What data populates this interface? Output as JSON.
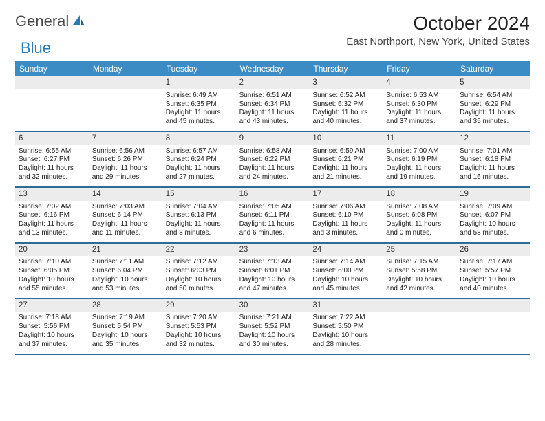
{
  "brand": {
    "part1": "General",
    "part2": "Blue",
    "icon_color": "#2a7ab8"
  },
  "title": "October 2024",
  "location": "East Northport, New York, United States",
  "colors": {
    "header_bg": "#3b8bc4",
    "week_border": "#2f6b99",
    "daynum_bg": "#ececec",
    "text": "#222222"
  },
  "typography": {
    "title_fontsize": 28,
    "location_fontsize": 15,
    "dow_fontsize": 12,
    "cell_fontsize": 10
  },
  "days_of_week": [
    "Sunday",
    "Monday",
    "Tuesday",
    "Wednesday",
    "Thursday",
    "Friday",
    "Saturday"
  ],
  "weeks": [
    [
      {
        "n": "",
        "empty": true
      },
      {
        "n": "",
        "empty": true
      },
      {
        "n": "1",
        "sr": "6:49 AM",
        "ss": "6:35 PM",
        "dl": "11 hours and 45 minutes."
      },
      {
        "n": "2",
        "sr": "6:51 AM",
        "ss": "6:34 PM",
        "dl": "11 hours and 43 minutes."
      },
      {
        "n": "3",
        "sr": "6:52 AM",
        "ss": "6:32 PM",
        "dl": "11 hours and 40 minutes."
      },
      {
        "n": "4",
        "sr": "6:53 AM",
        "ss": "6:30 PM",
        "dl": "11 hours and 37 minutes."
      },
      {
        "n": "5",
        "sr": "6:54 AM",
        "ss": "6:29 PM",
        "dl": "11 hours and 35 minutes."
      }
    ],
    [
      {
        "n": "6",
        "sr": "6:55 AM",
        "ss": "6:27 PM",
        "dl": "11 hours and 32 minutes."
      },
      {
        "n": "7",
        "sr": "6:56 AM",
        "ss": "6:26 PM",
        "dl": "11 hours and 29 minutes."
      },
      {
        "n": "8",
        "sr": "6:57 AM",
        "ss": "6:24 PM",
        "dl": "11 hours and 27 minutes."
      },
      {
        "n": "9",
        "sr": "6:58 AM",
        "ss": "6:22 PM",
        "dl": "11 hours and 24 minutes."
      },
      {
        "n": "10",
        "sr": "6:59 AM",
        "ss": "6:21 PM",
        "dl": "11 hours and 21 minutes."
      },
      {
        "n": "11",
        "sr": "7:00 AM",
        "ss": "6:19 PM",
        "dl": "11 hours and 19 minutes."
      },
      {
        "n": "12",
        "sr": "7:01 AM",
        "ss": "6:18 PM",
        "dl": "11 hours and 16 minutes."
      }
    ],
    [
      {
        "n": "13",
        "sr": "7:02 AM",
        "ss": "6:16 PM",
        "dl": "11 hours and 13 minutes."
      },
      {
        "n": "14",
        "sr": "7:03 AM",
        "ss": "6:14 PM",
        "dl": "11 hours and 11 minutes."
      },
      {
        "n": "15",
        "sr": "7:04 AM",
        "ss": "6:13 PM",
        "dl": "11 hours and 8 minutes."
      },
      {
        "n": "16",
        "sr": "7:05 AM",
        "ss": "6:11 PM",
        "dl": "11 hours and 6 minutes."
      },
      {
        "n": "17",
        "sr": "7:06 AM",
        "ss": "6:10 PM",
        "dl": "11 hours and 3 minutes."
      },
      {
        "n": "18",
        "sr": "7:08 AM",
        "ss": "6:08 PM",
        "dl": "11 hours and 0 minutes."
      },
      {
        "n": "19",
        "sr": "7:09 AM",
        "ss": "6:07 PM",
        "dl": "10 hours and 58 minutes."
      }
    ],
    [
      {
        "n": "20",
        "sr": "7:10 AM",
        "ss": "6:05 PM",
        "dl": "10 hours and 55 minutes."
      },
      {
        "n": "21",
        "sr": "7:11 AM",
        "ss": "6:04 PM",
        "dl": "10 hours and 53 minutes."
      },
      {
        "n": "22",
        "sr": "7:12 AM",
        "ss": "6:03 PM",
        "dl": "10 hours and 50 minutes."
      },
      {
        "n": "23",
        "sr": "7:13 AM",
        "ss": "6:01 PM",
        "dl": "10 hours and 47 minutes."
      },
      {
        "n": "24",
        "sr": "7:14 AM",
        "ss": "6:00 PM",
        "dl": "10 hours and 45 minutes."
      },
      {
        "n": "25",
        "sr": "7:15 AM",
        "ss": "5:58 PM",
        "dl": "10 hours and 42 minutes."
      },
      {
        "n": "26",
        "sr": "7:17 AM",
        "ss": "5:57 PM",
        "dl": "10 hours and 40 minutes."
      }
    ],
    [
      {
        "n": "27",
        "sr": "7:18 AM",
        "ss": "5:56 PM",
        "dl": "10 hours and 37 minutes."
      },
      {
        "n": "28",
        "sr": "7:19 AM",
        "ss": "5:54 PM",
        "dl": "10 hours and 35 minutes."
      },
      {
        "n": "29",
        "sr": "7:20 AM",
        "ss": "5:53 PM",
        "dl": "10 hours and 32 minutes."
      },
      {
        "n": "30",
        "sr": "7:21 AM",
        "ss": "5:52 PM",
        "dl": "10 hours and 30 minutes."
      },
      {
        "n": "31",
        "sr": "7:22 AM",
        "ss": "5:50 PM",
        "dl": "10 hours and 28 minutes."
      },
      {
        "n": "",
        "empty": true
      },
      {
        "n": "",
        "empty": true
      }
    ]
  ],
  "labels": {
    "sunrise": "Sunrise:",
    "sunset": "Sunset:",
    "daylight": "Daylight:"
  }
}
